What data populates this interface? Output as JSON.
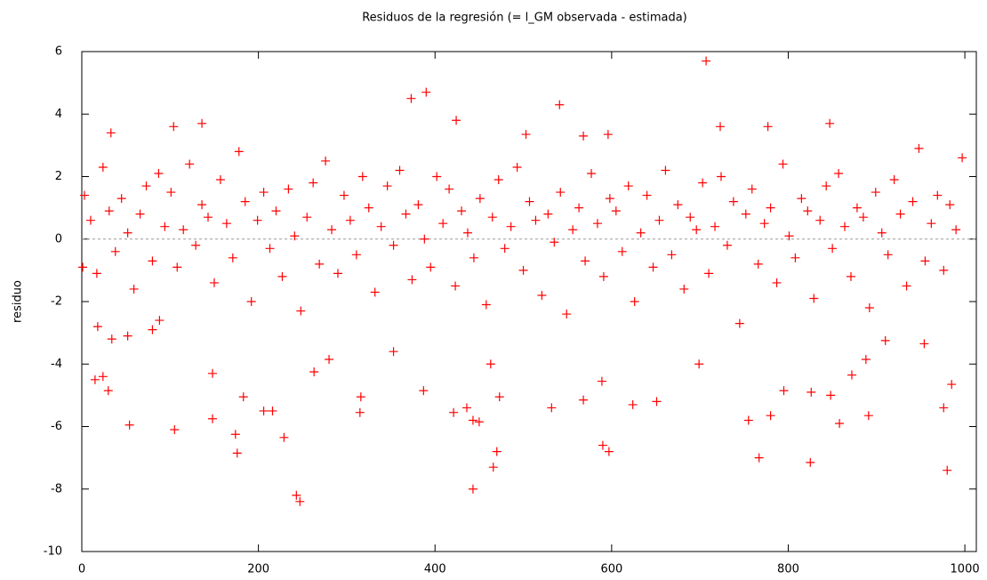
{
  "chart_data": {
    "type": "scatter",
    "title": "Residuos de la regresión (= l_GM observada - estimada)",
    "y_label": "residuo",
    "marker": "+",
    "zero_line": true,
    "xlim": [
      0,
      1013
    ],
    "ylim": [
      -10,
      6
    ],
    "xticks": [
      0,
      200,
      400,
      600,
      800,
      1000
    ],
    "yticks": [
      -10,
      -8,
      -6,
      -4,
      -2,
      0,
      2,
      4,
      6
    ],
    "x": [
      707,
      390,
      373,
      541,
      424,
      847,
      136,
      777,
      104,
      723,
      33,
      596,
      503,
      568,
      247,
      243,
      443,
      980,
      466,
      825,
      767,
      176,
      470,
      597,
      590,
      229,
      174,
      105,
      54,
      858,
      755,
      443,
      450,
      148,
      780,
      891,
      315,
      421,
      532,
      206,
      216,
      436,
      976,
      826,
      568,
      624,
      651,
      183,
      316,
      473,
      387,
      30,
      15,
      24,
      848,
      795,
      872,
      954,
      263,
      148,
      463,
      985,
      910,
      699,
      589,
      280,
      353,
      888,
      1,
      34,
      52,
      88,
      80,
      18,
      3,
      10,
      17,
      24,
      31,
      38,
      45,
      52,
      59,
      66,
      73,
      80,
      87,
      94,
      101,
      108,
      115,
      122,
      129,
      136,
      143,
      150,
      157,
      164,
      171,
      178,
      185,
      192,
      199,
      206,
      213,
      220,
      227,
      234,
      241,
      248,
      255,
      262,
      269,
      276,
      283,
      290,
      297,
      304,
      311,
      318,
      325,
      332,
      339,
      346,
      353,
      360,
      367,
      374,
      381,
      388,
      395,
      402,
      409,
      416,
      423,
      430,
      437,
      444,
      451,
      458,
      465,
      472,
      479,
      486,
      493,
      500,
      507,
      514,
      521,
      528,
      535,
      542,
      549,
      556,
      563,
      570,
      577,
      584,
      591,
      598,
      605,
      612,
      619,
      626,
      633,
      640,
      647,
      654,
      661,
      668,
      675,
      682,
      689,
      696,
      703,
      710,
      717,
      724,
      731,
      738,
      745,
      752,
      759,
      766,
      773,
      780,
      787,
      794,
      801,
      808,
      815,
      822,
      829,
      836,
      843,
      850,
      857,
      864,
      871,
      878,
      885,
      892,
      899,
      906,
      913,
      920,
      927,
      934,
      941,
      948,
      955,
      962,
      969,
      976,
      983,
      990,
      997
    ],
    "series": [
      {
        "color": "#ff0000",
        "values": [
          5.7,
          4.7,
          4.5,
          4.3,
          3.8,
          3.7,
          3.7,
          3.6,
          3.6,
          3.6,
          3.4,
          3.35,
          3.35,
          3.3,
          -8.4,
          -8.2,
          -8.0,
          -7.4,
          -7.3,
          -7.15,
          -7.0,
          -6.85,
          -6.8,
          -6.8,
          -6.6,
          -6.35,
          -6.25,
          -6.1,
          -5.95,
          -5.9,
          -5.8,
          -5.8,
          -5.85,
          -5.75,
          -5.65,
          -5.65,
          -5.55,
          -5.55,
          -5.4,
          -5.5,
          -5.5,
          -5.4,
          -5.4,
          -4.9,
          -5.15,
          -5.3,
          -5.2,
          -5.05,
          -5.05,
          -5.05,
          -4.85,
          -4.85,
          -4.5,
          -4.4,
          -5.0,
          -4.85,
          -4.35,
          -3.35,
          -4.25,
          -4.3,
          -4.0,
          -4.65,
          -3.25,
          -4.0,
          -4.55,
          -3.85,
          -3.6,
          -3.85,
          -0.9,
          -3.2,
          -3.1,
          -2.6,
          -2.9,
          -2.8,
          1.4,
          0.6,
          -1.1,
          2.3,
          0.9,
          -0.4,
          1.3,
          0.2,
          -1.6,
          0.8,
          1.7,
          -0.7,
          2.1,
          0.4,
          1.5,
          -0.9,
          0.3,
          2.4,
          -0.2,
          1.1,
          0.7,
          -1.4,
          1.9,
          0.5,
          -0.6,
          2.8,
          1.2,
          -2.0,
          0.6,
          1.5,
          -0.3,
          0.9,
          -1.2,
          1.6,
          0.1,
          -2.3,
          0.7,
          1.8,
          -0.8,
          2.5,
          0.3,
          -1.1,
          1.4,
          0.6,
          -0.5,
          2.0,
          1.0,
          -1.7,
          0.4,
          1.7,
          -0.2,
          2.2,
          0.8,
          -1.3,
          1.1,
          0.0,
          -0.9,
          2.0,
          0.5,
          1.6,
          -1.5,
          0.9,
          0.2,
          -0.6,
          1.3,
          -2.1,
          0.7,
          1.9,
          -0.3,
          0.4,
          2.3,
          -1.0,
          1.2,
          0.6,
          -1.8,
          0.8,
          -0.1,
          1.5,
          -2.4,
          0.3,
          1.0,
          -0.7,
          2.1,
          0.5,
          -1.2,
          1.3,
          0.9,
          -0.4,
          1.7,
          -2.0,
          0.2,
          1.4,
          -0.9,
          0.6,
          2.2,
          -0.5,
          1.1,
          -1.6,
          0.7,
          0.3,
          1.8,
          -1.1,
          0.4,
          2.0,
          -0.2,
          1.2,
          -2.7,
          0.8,
          1.6,
          -0.8,
          0.5,
          1.0,
          -1.4,
          2.4,
          0.1,
          -0.6,
          1.3,
          0.9,
          -1.9,
          0.6,
          1.7,
          -0.3,
          2.1,
          0.4,
          -1.2,
          1.0,
          0.7,
          -2.2,
          1.5,
          0.2,
          -0.5,
          1.9,
          0.8,
          -1.5,
          1.2,
          2.9,
          -0.7,
          0.5,
          1.4,
          -1.0,
          1.1,
          0.3,
          2.6
        ]
      }
    ]
  }
}
